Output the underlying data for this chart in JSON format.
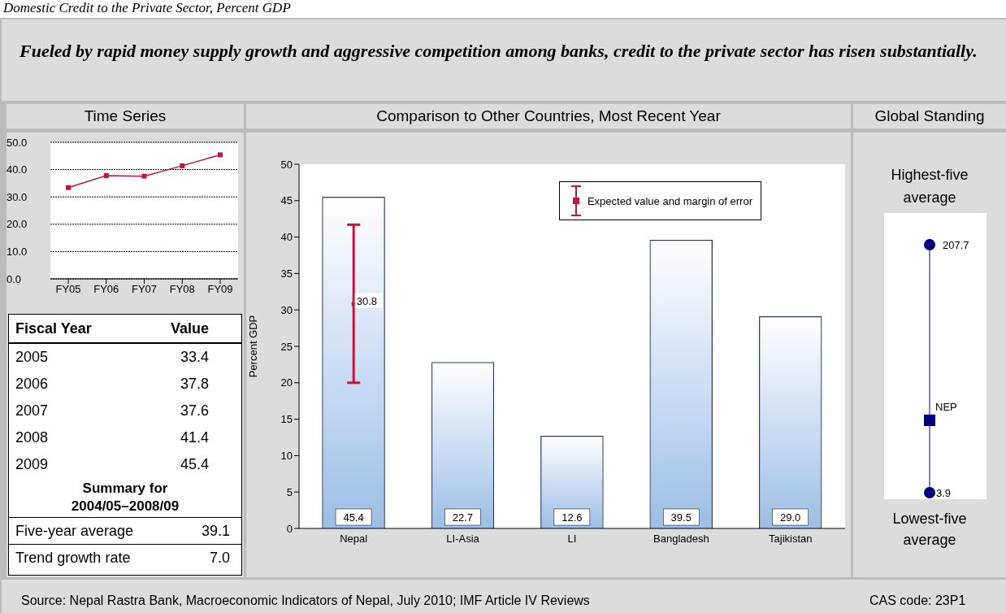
{
  "chart_data": [
    {
      "type": "other",
      "title": "Domestic Credit to the Private Sector, Percent GDP",
      "subtitle": "Fueled by rapid money supply growth and aggressive competition among banks, credit to the private sector has risen substantially.",
      "annotations": [
        "Source: Nepal Rastra Bank, Macroeconomic Indicators of Nepal, July 2010; IMF Article IV Reviews",
        "CAS code: 23P1"
      ]
    },
    {
      "type": "line",
      "title": "Time Series",
      "categories": [
        "FY05",
        "FY06",
        "FY07",
        "FY08",
        "FY09"
      ],
      "values": [
        33.4,
        37.8,
        37.6,
        41.4,
        45.4
      ],
      "color": "#c8143c",
      "marker": "square",
      "ylim": [
        0,
        50
      ],
      "yticks": [
        {
          "value": 0,
          "label": "0.0"
        },
        {
          "value": 10,
          "label": "10.0"
        },
        {
          "value": 20,
          "label": "20.0"
        },
        {
          "value": 30,
          "label": "30.0"
        },
        {
          "value": 40,
          "label": "40.0"
        },
        {
          "value": 50,
          "label": "50.0"
        }
      ],
      "grid": "y",
      "annotations": [
        "Fiscal Year",
        "Value",
        "2005",
        "33.4",
        "2006",
        "37.8",
        "2007",
        "37.6",
        "2008",
        "41.4",
        "2009",
        "45.4",
        "Summary for 2004/05–2008/09",
        "Five-year average",
        "39.1",
        "Trend growth rate",
        "7.0"
      ]
    },
    {
      "type": "bar",
      "title": "Comparison to Other Countries, Most Recent Year",
      "ylabel": "Percent GDP",
      "categories": [
        "Nepal",
        "LI-Asia",
        "LI",
        "Bangladesh",
        "Tajikistan"
      ],
      "ylim": [
        0,
        50
      ],
      "yticks": [
        0,
        5,
        10,
        15,
        20,
        25,
        30,
        35,
        40,
        45,
        50
      ],
      "legend": "top right",
      "series": [
        {
          "type": "bar",
          "color": "#9dbde6",
          "values": [
            45.4,
            22.7,
            12.6,
            39.5,
            29.0
          ],
          "value_labels": [
            "45.4",
            "22.7",
            "12.6",
            "39.5",
            "29.0"
          ]
        },
        {
          "type": "scatter",
          "name": "Expected value and margin of error",
          "color": "#c8143c",
          "x": [
            "Nepal"
          ],
          "values": [
            30.8
          ],
          "errors": [
            [
              20,
              41.7
            ]
          ],
          "value_labels": [
            "30.8"
          ]
        }
      ]
    },
    {
      "type": "other",
      "title": "Global Standing",
      "annotations": [
        "Highest-five average",
        "207.7",
        "NEP",
        "3.9",
        "Lowest-five average"
      ]
    }
  ]
}
